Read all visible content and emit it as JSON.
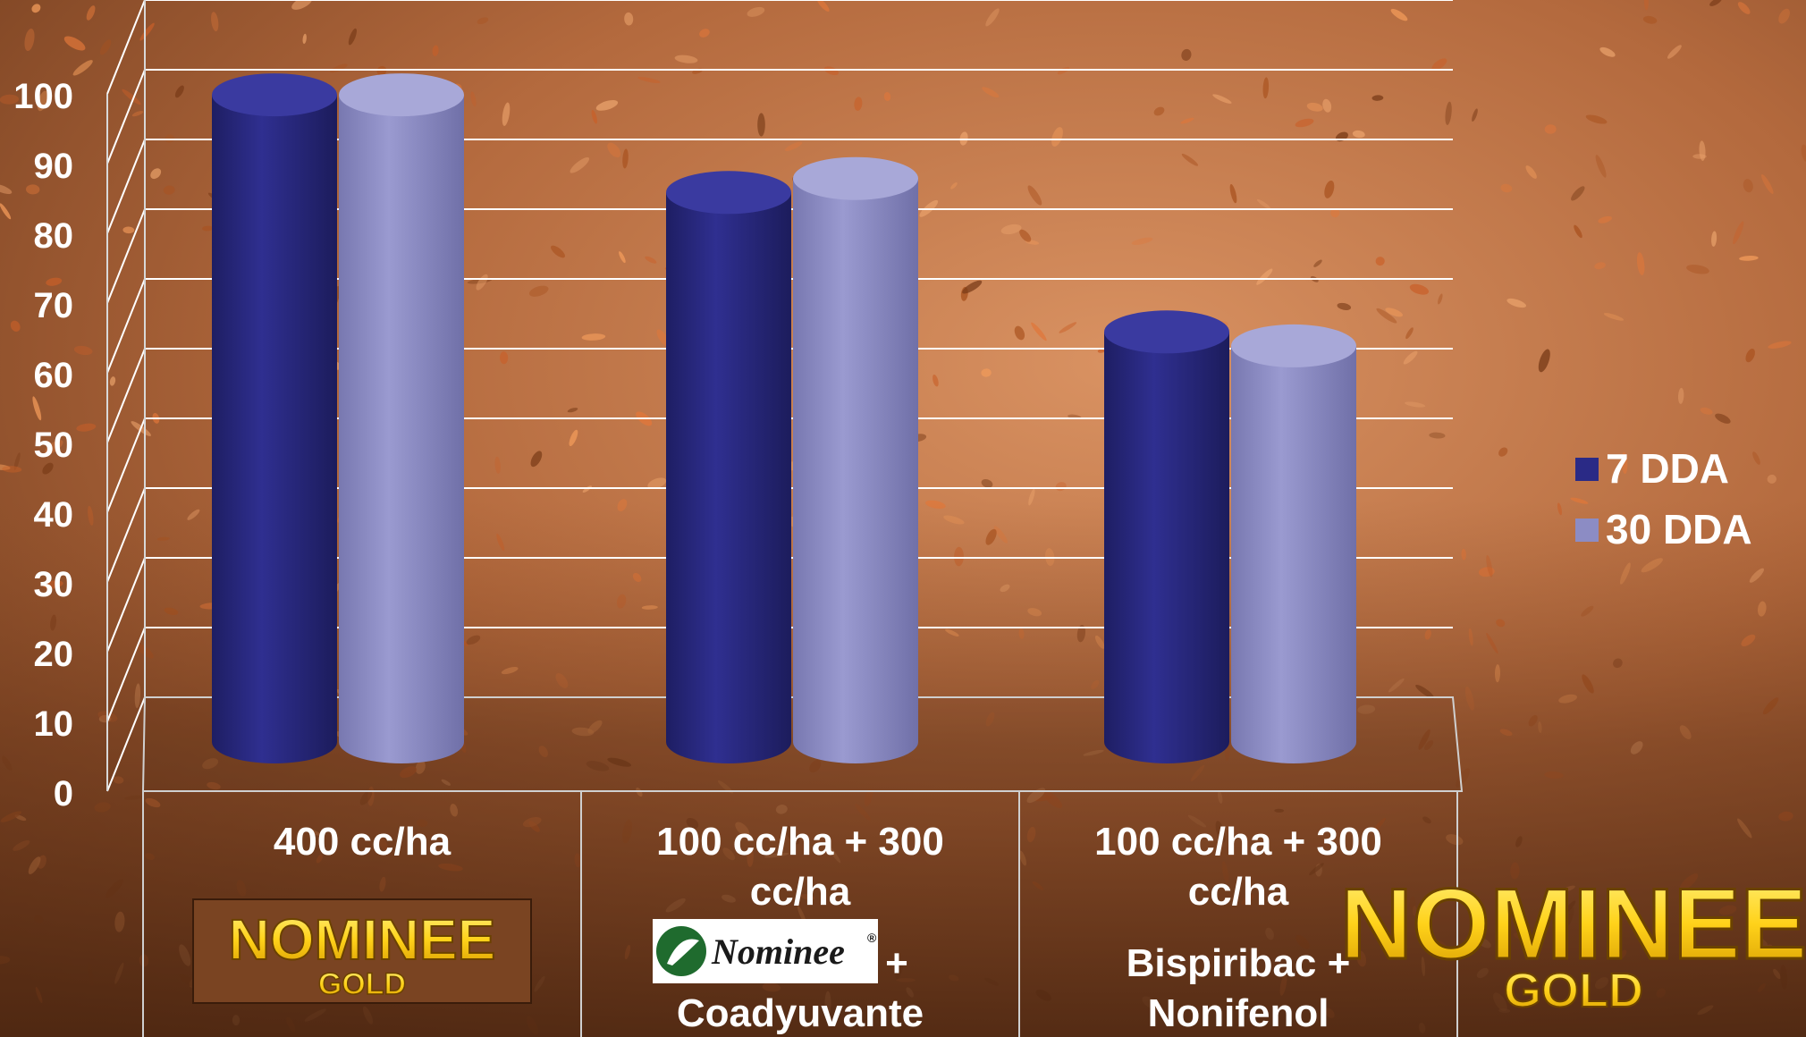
{
  "colors": {
    "series_7dda": "#2a2a86",
    "series_30dda": "#8c8cc4",
    "gridline": "#ffffff",
    "logo_gold": "#ffd21a",
    "background": "#b86a3c"
  },
  "chart_data": {
    "type": "bar",
    "title": "",
    "xlabel": "",
    "ylabel": "",
    "ylim": [
      0,
      100
    ],
    "y_ticks": [
      "0",
      "10",
      "20",
      "30",
      "40",
      "50",
      "60",
      "70",
      "80",
      "90",
      "100"
    ],
    "grid": true,
    "legend_position": "right",
    "categories": [
      [
        "400 cc/ha"
      ],
      [
        "100 cc/ha + 300",
        "cc/ha"
      ],
      [
        "100 cc/ha + 300",
        "cc/ha"
      ]
    ],
    "category_notes": [
      {
        "logo": "nominee-gold-logo"
      },
      {
        "logo": "nominee-logo",
        "plus": "+",
        "lines": [
          "Coadyuvante"
        ]
      },
      {
        "logo": "",
        "plus": "",
        "lines": [
          "Bispiribac +",
          "Nonifenol"
        ]
      }
    ],
    "series": [
      {
        "name": "7 DDA",
        "color": "#2a2a86",
        "values": [
          98,
          84,
          64
        ]
      },
      {
        "name": "30 DDA",
        "color": "#8c8cc4",
        "values": [
          98,
          86,
          62
        ]
      }
    ]
  },
  "logos": {
    "nominee_gold_small": {
      "word": "NOMINEE",
      "sub": "GOLD"
    },
    "nominee": {
      "word": "Nominee",
      "mark": "®"
    },
    "nominee_gold_large": {
      "word": "NOMINEE",
      "sub": "GOLD"
    }
  }
}
